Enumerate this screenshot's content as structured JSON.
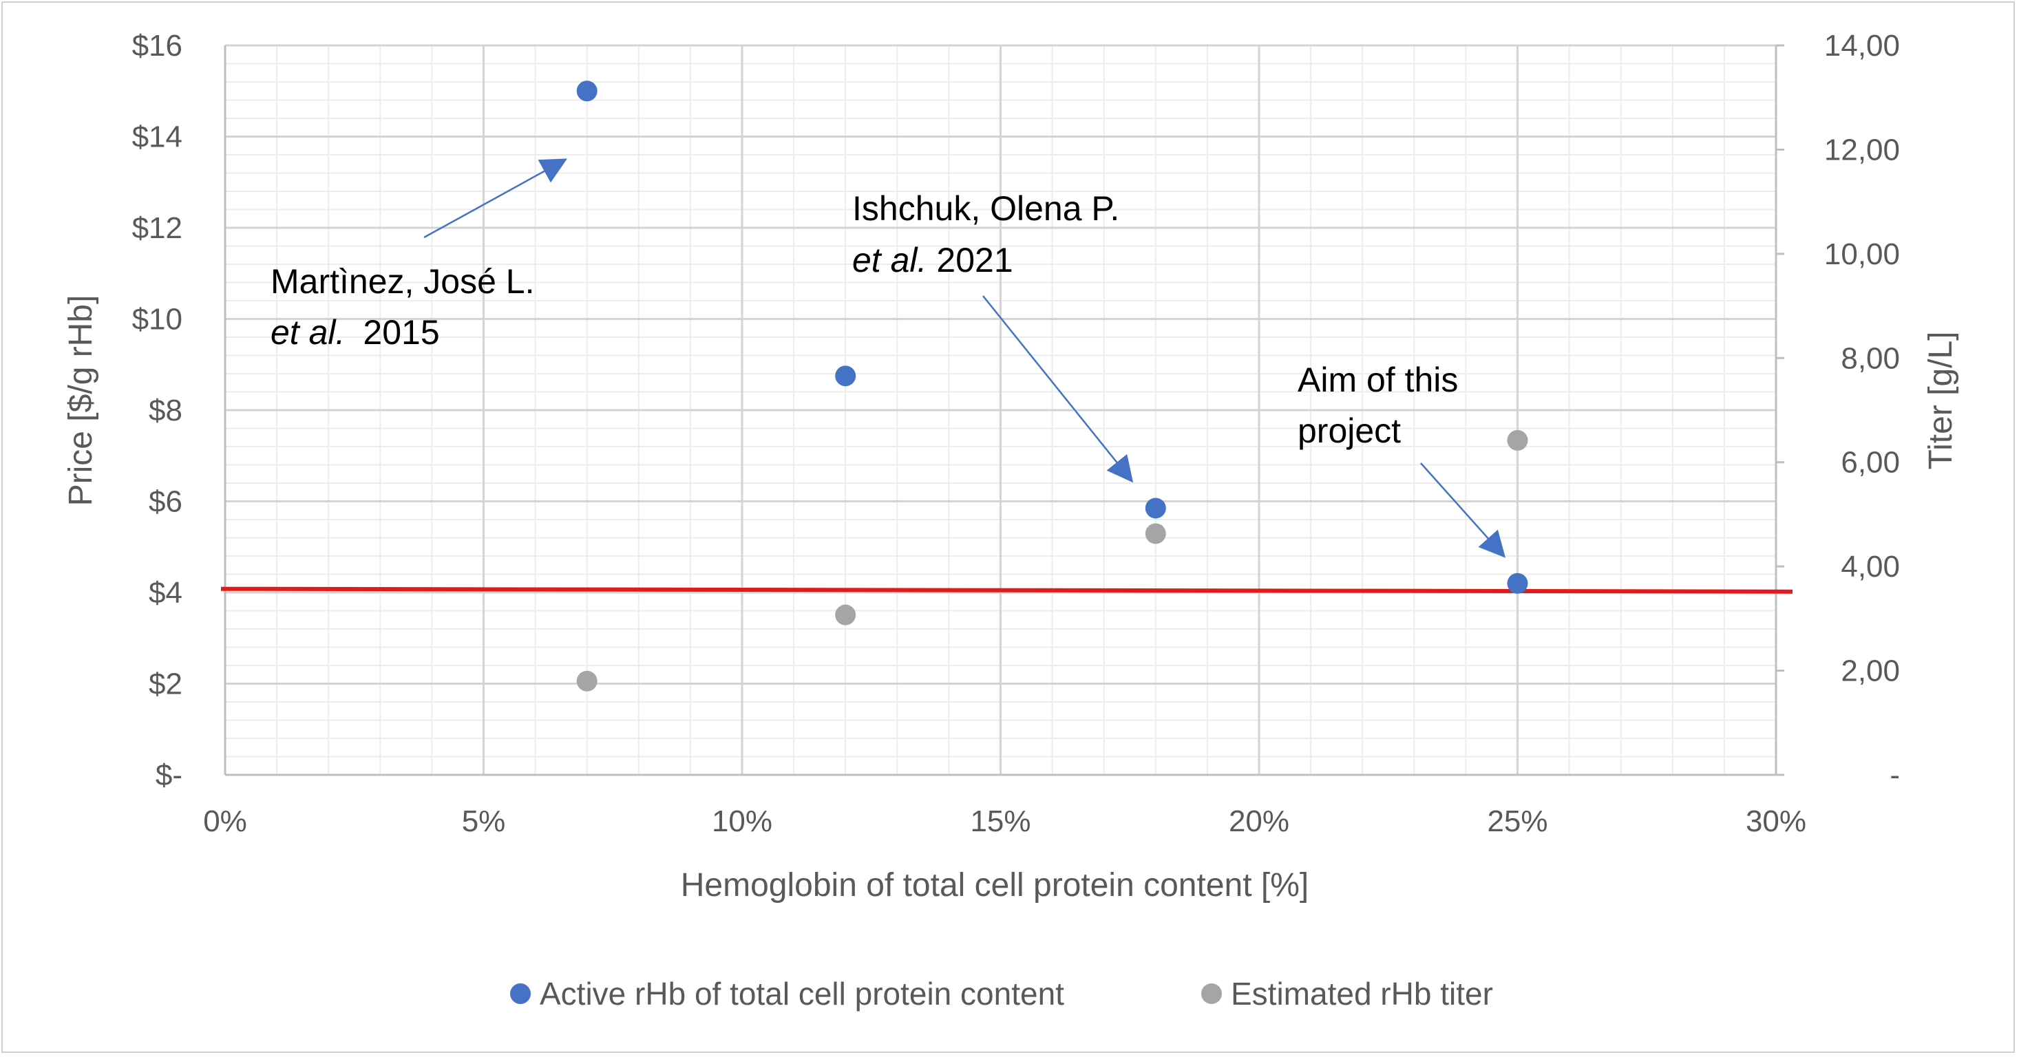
{
  "chart_data": {
    "type": "scatter",
    "xlabel": "Hemoglobin of total cell protein content [%]",
    "ylabel": "Price [$/g rHb]",
    "y2label": "Titer [g/L]",
    "xlim": [
      0,
      0.3
    ],
    "ylim": [
      0,
      16
    ],
    "y2lim": [
      0,
      14
    ],
    "x_ticks": [
      0,
      0.05,
      0.1,
      0.15,
      0.2,
      0.25,
      0.3
    ],
    "x_tick_labels": [
      "0%",
      "5%",
      "10%",
      "15%",
      "20%",
      "25%",
      "30%"
    ],
    "y_ticks": [
      0,
      2,
      4,
      6,
      8,
      10,
      12,
      14,
      16
    ],
    "y_tick_labels": [
      "$-",
      "$2",
      "$4",
      "$6",
      "$8",
      "$10",
      "$12",
      "$14",
      "$16"
    ],
    "y2_ticks": [
      0,
      2,
      4,
      6,
      8,
      10,
      12,
      14
    ],
    "y2_tick_labels": [
      "-",
      "2,00",
      "4,00",
      "6,00",
      "8,00",
      "10,00",
      "12,00",
      "14,00"
    ],
    "grid": true,
    "legend_position": "bottom",
    "reference_line": {
      "y": 4.05,
      "color": "#e31a1c"
    },
    "series": [
      {
        "name": "Active rHb of total cell protein content",
        "axis": "left",
        "color": "#4472c4",
        "points": [
          {
            "x": 0.07,
            "y": 15.0
          },
          {
            "x": 0.12,
            "y": 8.75
          },
          {
            "x": 0.18,
            "y": 5.85
          },
          {
            "x": 0.25,
            "y": 4.2
          }
        ]
      },
      {
        "name": "Estimated rHb titer",
        "axis": "right",
        "color": "#a5a5a5",
        "points": [
          {
            "x": 0.07,
            "y": 1.8
          },
          {
            "x": 0.12,
            "y": 3.07
          },
          {
            "x": 0.18,
            "y": 4.63
          },
          {
            "x": 0.25,
            "y": 6.42
          }
        ]
      }
    ],
    "annotations": [
      {
        "line1": "Martìnez, José L.",
        "line2_italic": "et al.",
        "line2_rest": "2015"
      },
      {
        "line1": "Ishchuk, Olena P.",
        "line2_italic": "et al.",
        "line2_rest": "2021"
      },
      {
        "line1": "Aim of this",
        "line2_italic": "",
        "line2_rest": "project"
      }
    ]
  }
}
